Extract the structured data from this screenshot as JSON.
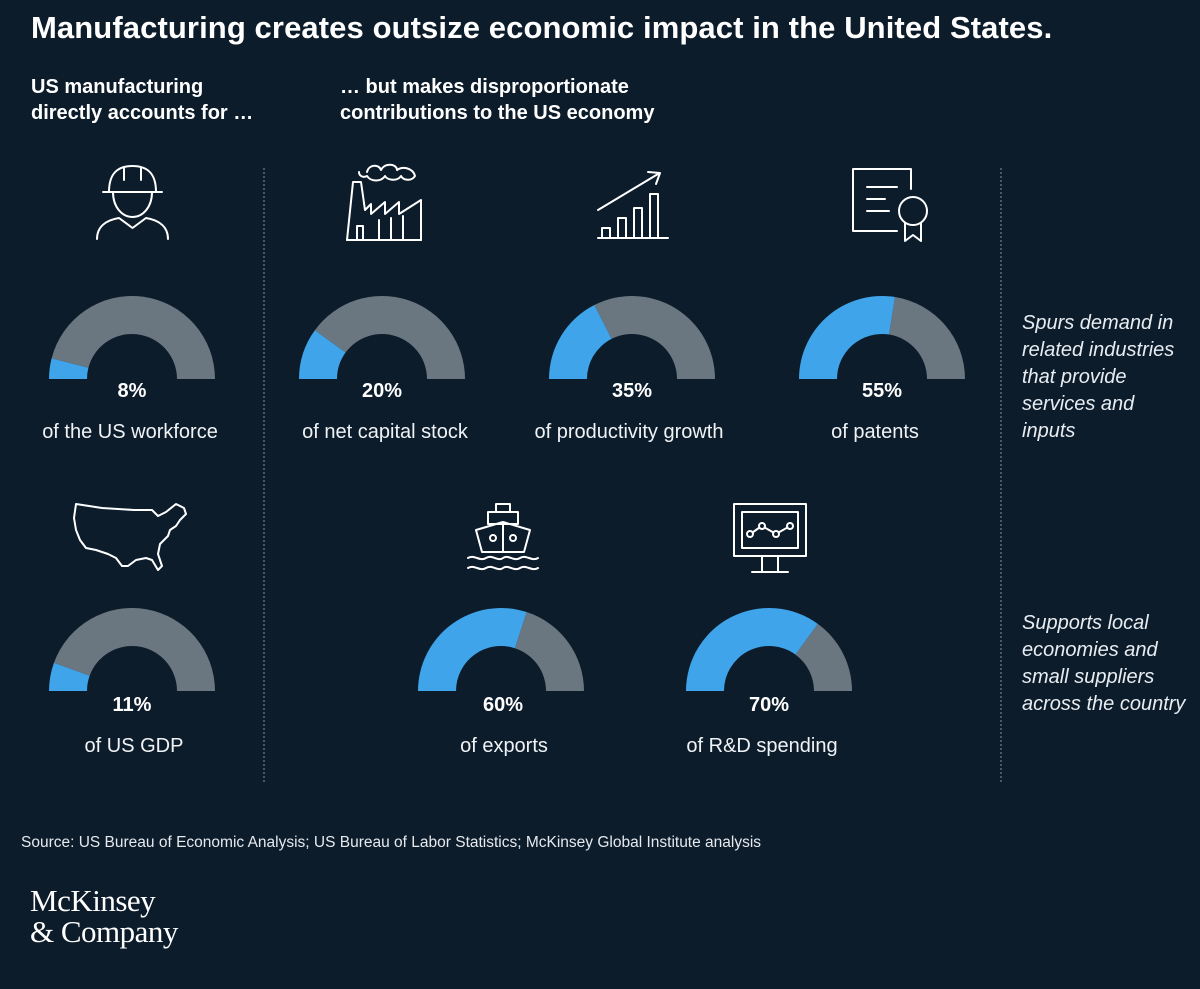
{
  "title": "Manufacturing creates outsize economic impact in the United States.",
  "left_heading": "US manufacturing\ndirectly accounts for …",
  "right_heading": "… but makes disproportionate\ncontributions to the US economy",
  "notes": [
    "Spurs demand in related industries that provide services and inputs",
    "Supports local economies and small suppliers across the country"
  ],
  "source": "Source: US Bureau of Economic Analysis; US Bureau of Labor Statistics; McKinsey Global Institute analysis",
  "logo": "McKinsey\n& Company",
  "colors": {
    "background": "#0d1c2b",
    "highlight": "#3fa4ea",
    "remainder": "#6b7780"
  },
  "chart_data": {
    "type": "pie",
    "variant": "semicircle-gauge",
    "items": [
      {
        "id": "workforce",
        "percent": 8,
        "value_label": "8%",
        "label": "of the US workforce",
        "icon": "worker-icon"
      },
      {
        "id": "capital",
        "percent": 20,
        "value_label": "20%",
        "label": "of net capital stock",
        "icon": "factory-icon"
      },
      {
        "id": "productivity",
        "percent": 35,
        "value_label": "35%",
        "label": "of productivity growth",
        "icon": "growth-chart-icon"
      },
      {
        "id": "patents",
        "percent": 55,
        "value_label": "55%",
        "label": "of patents",
        "icon": "certificate-icon"
      },
      {
        "id": "gdp",
        "percent": 11,
        "value_label": "11%",
        "label": "of US GDP",
        "icon": "us-map-icon"
      },
      {
        "id": "exports",
        "percent": 60,
        "value_label": "60%",
        "label": "of exports",
        "icon": "ship-icon"
      },
      {
        "id": "rnd",
        "percent": 70,
        "value_label": "70%",
        "label": "of R&D spending",
        "icon": "monitor-icon"
      }
    ]
  }
}
